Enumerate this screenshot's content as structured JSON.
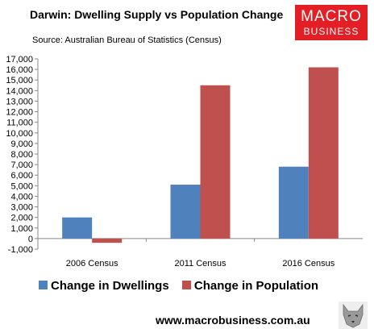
{
  "header": {
    "title": "Darwin: Dwelling Supply vs Population Change",
    "source": "Source: Australian Bureau of Statistics (Census)"
  },
  "logo": {
    "line1": "MACRO",
    "line2": "BUSINESS",
    "color": "#e31e24"
  },
  "footer": {
    "website": "www.macrobusiness.com.au",
    "icon": "wolf-icon"
  },
  "chart_data": {
    "type": "bar",
    "categories": [
      "2006 Census",
      "2011 Census",
      "2016 Census"
    ],
    "series": [
      {
        "name": "Change in Dwellings",
        "values": [
          2000,
          5100,
          6800
        ],
        "color": "#4f81bd"
      },
      {
        "name": "Change in Population",
        "values": [
          -400,
          14500,
          16200
        ],
        "color": "#c0504d"
      }
    ],
    "ylim": [
      -1000,
      17000
    ],
    "yticks": [
      "-1,000",
      "0",
      "1,000",
      "2,000",
      "3,000",
      "4,000",
      "5,000",
      "6,000",
      "7,000",
      "8,000",
      "9,000",
      "10,000",
      "11,000",
      "12,000",
      "13,000",
      "14,000",
      "15,000",
      "16,000",
      "17,000"
    ],
    "ytick_values": [
      -1000,
      0,
      1000,
      2000,
      3000,
      4000,
      5000,
      6000,
      7000,
      8000,
      9000,
      10000,
      11000,
      12000,
      13000,
      14000,
      15000,
      16000,
      17000
    ],
    "legend_position": "bottom",
    "grid": false
  }
}
